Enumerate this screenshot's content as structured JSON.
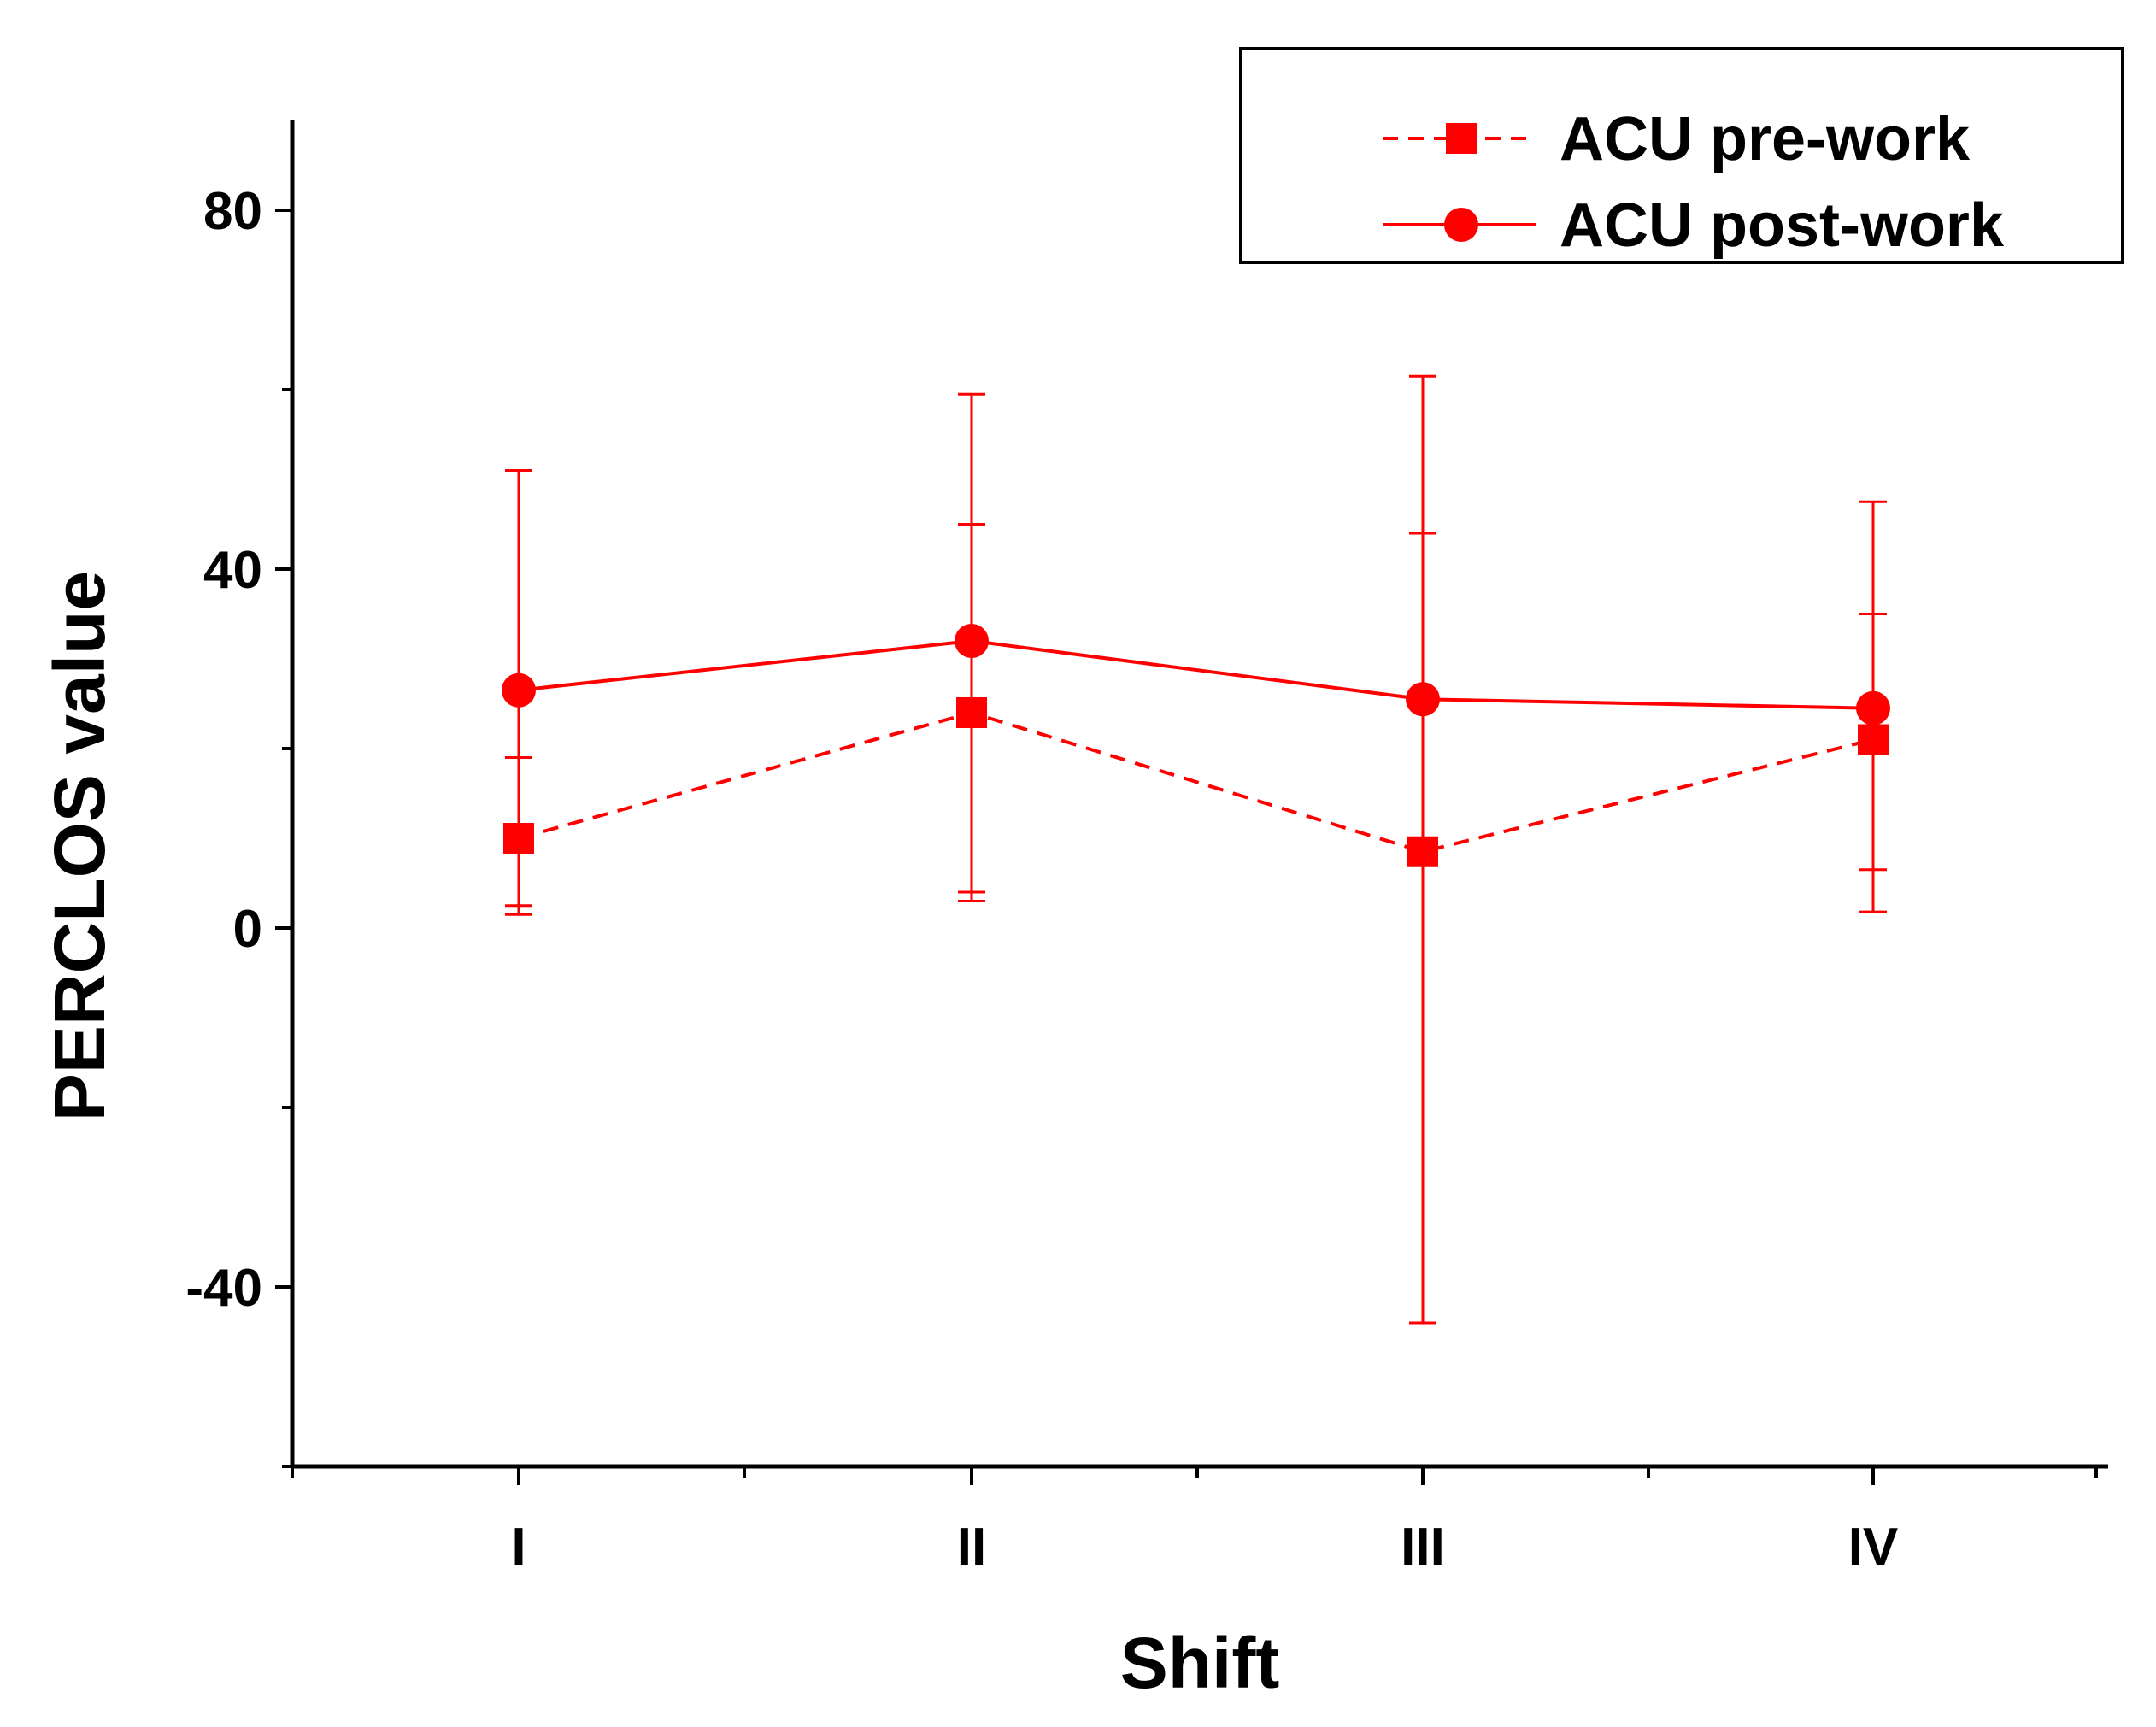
{
  "chart_data": {
    "type": "line",
    "xlabel": "Shift",
    "ylabel": "PERCLOS value",
    "categories": [
      "I",
      "II",
      "III",
      "IV"
    ],
    "ylim": [
      -60,
      90
    ],
    "yticks": [
      -40,
      0,
      40,
      80
    ],
    "yticks_minor": [
      -60,
      -20,
      20,
      60
    ],
    "legend_position": "top-right",
    "colors": {
      "series": "#ff0000",
      "axis": "#000000"
    },
    "series": [
      {
        "name": "ACU pre-work",
        "style": "dashed",
        "marker": "square",
        "values": [
          10,
          24,
          8.5,
          21
        ],
        "err_low": [
          1.5,
          3,
          -44,
          1.8
        ],
        "err_high": [
          19,
          45,
          44,
          35
        ]
      },
      {
        "name": "ACU post-work",
        "style": "solid",
        "marker": "circle",
        "values": [
          26.5,
          32,
          25.5,
          24.5
        ],
        "err_low": [
          2.5,
          4,
          8.5,
          6.5
        ],
        "err_high": [
          51,
          59.5,
          61.5,
          47.5
        ]
      }
    ]
  }
}
